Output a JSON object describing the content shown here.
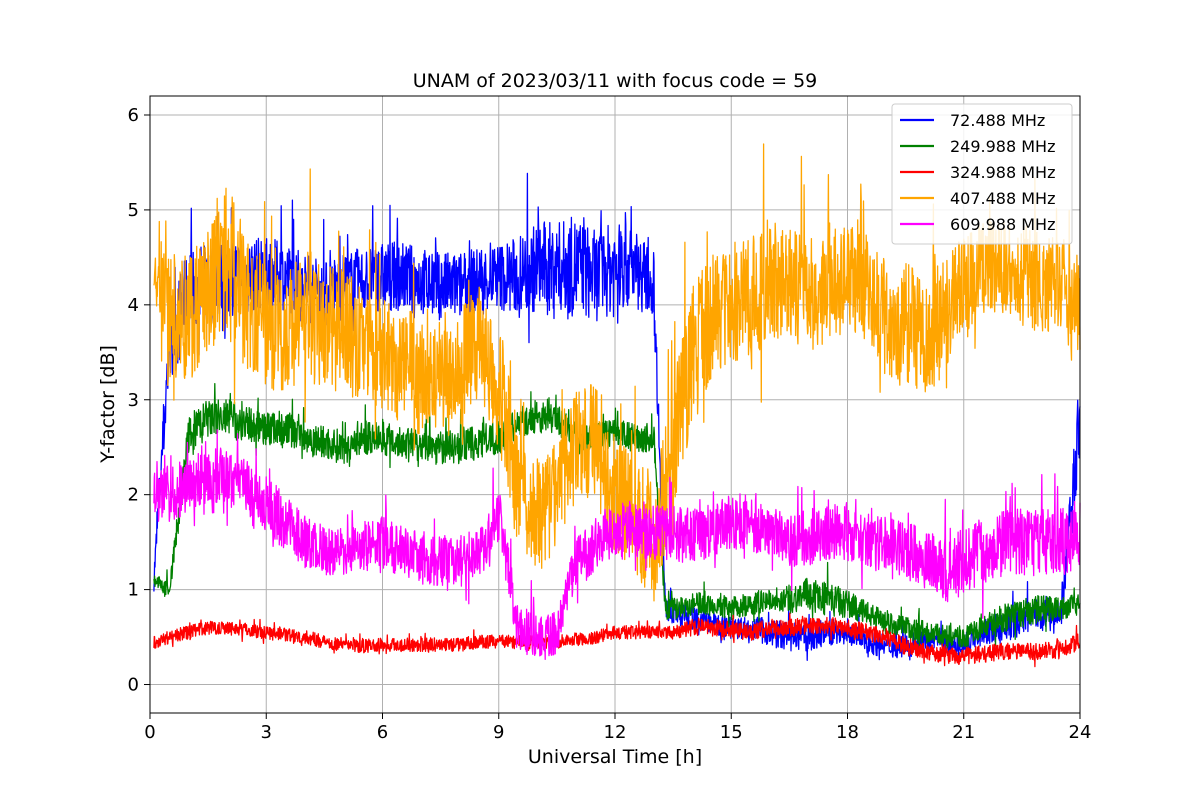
{
  "chart_data": {
    "type": "line",
    "title": "UNAM of 2023/03/11 with focus code = 59",
    "xlabel": "Universal Time [h]",
    "ylabel": "Y-factor [dB]",
    "xlim": [
      0,
      24
    ],
    "ylim": [
      -0.3,
      6.2
    ],
    "xticks": [
      0,
      3,
      6,
      9,
      12,
      15,
      18,
      21,
      24
    ],
    "yticks": [
      0,
      1,
      2,
      3,
      4,
      5,
      6
    ],
    "grid": true,
    "legend_position": "top-right",
    "series": [
      {
        "name": "  72.488 MHz",
        "color": "#0000ff",
        "x": [
          0.1,
          0.5,
          1,
          1.5,
          2,
          2.5,
          3,
          3.5,
          4,
          4.5,
          5,
          5.5,
          6,
          6.5,
          7,
          7.5,
          8,
          8.5,
          9,
          9.5,
          10,
          10.5,
          11,
          11.5,
          12,
          12.5,
          13,
          13.3,
          13.5,
          14,
          14.5,
          15,
          15.5,
          16,
          16.5,
          17,
          17.5,
          18,
          18.5,
          19,
          19.5,
          20,
          20.5,
          21,
          21.5,
          22,
          22.5,
          23,
          23.5,
          24
        ],
        "base": [
          1.1,
          3.6,
          4.1,
          4.2,
          4.3,
          4.3,
          4.35,
          4.3,
          4.2,
          4.1,
          4.2,
          4.25,
          4.3,
          4.3,
          4.25,
          4.2,
          4.2,
          4.25,
          4.3,
          4.3,
          4.4,
          4.4,
          4.4,
          4.3,
          4.4,
          4.4,
          4.2,
          0.8,
          0.75,
          0.7,
          0.65,
          0.6,
          0.6,
          0.55,
          0.5,
          0.5,
          0.55,
          0.55,
          0.45,
          0.4,
          0.4,
          0.45,
          0.45,
          0.4,
          0.55,
          0.6,
          0.7,
          0.75,
          0.7,
          2.8
        ],
        "amp": [
          0.2,
          0.8,
          0.8,
          0.8,
          0.7,
          0.7,
          0.6,
          0.6,
          0.6,
          0.6,
          0.6,
          0.6,
          0.6,
          0.6,
          0.6,
          0.6,
          0.6,
          0.6,
          0.6,
          0.7,
          0.8,
          0.8,
          0.9,
          0.8,
          0.8,
          0.7,
          0.6,
          0.2,
          0.2,
          0.2,
          0.2,
          0.2,
          0.2,
          0.25,
          0.25,
          0.25,
          0.25,
          0.2,
          0.2,
          0.2,
          0.2,
          0.2,
          0.2,
          0.2,
          0.2,
          0.3,
          0.3,
          0.3,
          0.3,
          0.8
        ]
      },
      {
        "name": "249.988 MHz",
        "color": "#008000",
        "x": [
          0.1,
          0.5,
          1,
          1.5,
          2,
          2.5,
          3,
          3.5,
          4,
          4.5,
          5,
          5.5,
          6,
          6.5,
          7,
          7.5,
          8,
          8.5,
          9,
          9.5,
          10,
          10.5,
          11,
          11.5,
          12,
          12.5,
          13,
          13.3,
          13.5,
          14,
          14.5,
          15,
          15.5,
          16,
          16.5,
          17,
          17.5,
          18,
          18.5,
          19,
          19.5,
          20,
          20.5,
          21,
          21.5,
          22,
          22.5,
          23,
          23.5,
          24
        ],
        "base": [
          1.1,
          1.0,
          2.6,
          2.8,
          2.8,
          2.75,
          2.7,
          2.7,
          2.6,
          2.55,
          2.5,
          2.6,
          2.6,
          2.55,
          2.5,
          2.5,
          2.5,
          2.55,
          2.6,
          2.75,
          2.8,
          2.8,
          2.6,
          2.6,
          2.65,
          2.6,
          2.6,
          0.8,
          0.8,
          0.85,
          0.85,
          0.8,
          0.85,
          0.9,
          0.9,
          0.95,
          0.9,
          0.85,
          0.75,
          0.65,
          0.6,
          0.55,
          0.5,
          0.5,
          0.6,
          0.7,
          0.75,
          0.8,
          0.8,
          0.85
        ],
        "amp": [
          0.1,
          0.15,
          0.4,
          0.35,
          0.35,
          0.3,
          0.3,
          0.3,
          0.3,
          0.3,
          0.3,
          0.3,
          0.3,
          0.3,
          0.3,
          0.3,
          0.3,
          0.3,
          0.3,
          0.25,
          0.25,
          0.25,
          0.25,
          0.25,
          0.25,
          0.25,
          0.25,
          0.2,
          0.2,
          0.2,
          0.2,
          0.2,
          0.2,
          0.2,
          0.25,
          0.3,
          0.3,
          0.25,
          0.2,
          0.2,
          0.2,
          0.2,
          0.2,
          0.2,
          0.2,
          0.25,
          0.25,
          0.25,
          0.2,
          0.2
        ]
      },
      {
        "name": "324.988 MHz",
        "color": "#ff0000",
        "x": [
          0.1,
          0.5,
          1,
          1.5,
          2,
          2.5,
          3,
          3.5,
          4,
          4.5,
          5,
          5.5,
          6,
          6.5,
          7,
          7.5,
          8,
          8.5,
          9,
          9.5,
          10,
          10.5,
          11,
          11.5,
          12,
          12.5,
          13,
          13.5,
          14,
          14.5,
          15,
          15.5,
          16,
          16.5,
          17,
          17.5,
          18,
          18.5,
          19,
          19.5,
          20,
          20.5,
          21,
          21.5,
          22,
          22.5,
          23,
          23.5,
          24
        ],
        "base": [
          0.45,
          0.5,
          0.55,
          0.6,
          0.6,
          0.58,
          0.55,
          0.52,
          0.5,
          0.45,
          0.42,
          0.4,
          0.42,
          0.42,
          0.42,
          0.42,
          0.42,
          0.45,
          0.45,
          0.45,
          0.45,
          0.45,
          0.48,
          0.5,
          0.55,
          0.55,
          0.55,
          0.55,
          0.6,
          0.6,
          0.58,
          0.55,
          0.6,
          0.6,
          0.62,
          0.62,
          0.6,
          0.55,
          0.5,
          0.4,
          0.35,
          0.3,
          0.3,
          0.32,
          0.35,
          0.35,
          0.35,
          0.38,
          0.45
        ],
        "amp": [
          0.12,
          0.12,
          0.12,
          0.12,
          0.12,
          0.12,
          0.12,
          0.12,
          0.12,
          0.12,
          0.12,
          0.12,
          0.12,
          0.12,
          0.12,
          0.12,
          0.12,
          0.12,
          0.12,
          0.12,
          0.12,
          0.12,
          0.12,
          0.12,
          0.12,
          0.12,
          0.12,
          0.12,
          0.15,
          0.15,
          0.15,
          0.15,
          0.15,
          0.15,
          0.15,
          0.15,
          0.15,
          0.15,
          0.15,
          0.15,
          0.15,
          0.15,
          0.15,
          0.15,
          0.15,
          0.15,
          0.15,
          0.15,
          0.15
        ]
      },
      {
        "name": "407.488 MHz",
        "color": "#ffa500",
        "x": [
          0.1,
          0.5,
          1,
          1.5,
          2,
          2.5,
          3,
          3.5,
          4,
          4.5,
          5,
          5.5,
          6,
          6.5,
          7,
          7.5,
          8,
          8.5,
          9,
          9.5,
          10,
          10.5,
          11,
          11.5,
          12,
          12.5,
          13,
          13.5,
          14,
          14.5,
          15,
          15.5,
          16,
          16.5,
          17,
          17.5,
          18,
          18.5,
          19,
          19.5,
          20,
          20.5,
          21,
          21.5,
          22,
          22.5,
          23,
          23.5,
          24
        ],
        "base": [
          4.0,
          3.8,
          3.9,
          4.2,
          4.5,
          4.0,
          3.8,
          3.7,
          3.9,
          3.8,
          3.7,
          3.6,
          3.5,
          3.4,
          3.2,
          3.3,
          3.4,
          3.6,
          3.2,
          2.0,
          1.8,
          2.0,
          2.5,
          2.6,
          2.0,
          1.8,
          1.5,
          2.5,
          3.5,
          3.9,
          4.0,
          4.1,
          4.2,
          4.2,
          4.1,
          4.2,
          4.3,
          4.2,
          3.8,
          3.8,
          3.6,
          3.9,
          4.2,
          4.4,
          4.4,
          4.3,
          4.2,
          4.2,
          4.0
        ],
        "amp": [
          1.0,
          1.2,
          1.2,
          1.2,
          1.3,
          1.2,
          1.1,
          1.1,
          1.2,
          1.1,
          1.1,
          1.0,
          1.0,
          1.1,
          1.0,
          1.0,
          1.0,
          1.0,
          1.2,
          1.0,
          1.0,
          1.0,
          1.0,
          1.1,
          1.0,
          1.0,
          1.2,
          1.2,
          1.2,
          1.1,
          1.1,
          1.1,
          1.1,
          1.1,
          1.0,
          1.0,
          1.0,
          1.0,
          1.1,
          1.1,
          1.1,
          1.0,
          0.9,
          0.8,
          0.8,
          0.9,
          0.9,
          0.9,
          1.0
        ]
      },
      {
        "name": "609.988 MHz",
        "color": "#ff00ff",
        "x": [
          0.1,
          0.5,
          1,
          1.5,
          2,
          2.5,
          3,
          3.5,
          4,
          4.5,
          5,
          5.5,
          6,
          6.5,
          7,
          7.5,
          8,
          8.5,
          9,
          9.5,
          10,
          10.5,
          11,
          11.5,
          12,
          12.5,
          13,
          13.5,
          14,
          14.5,
          15,
          15.5,
          16,
          16.5,
          17,
          17.5,
          18,
          18.5,
          19,
          19.5,
          20,
          20.5,
          21,
          21.5,
          22,
          22.5,
          23,
          23.5,
          24
        ],
        "base": [
          2.0,
          2.0,
          2.1,
          2.2,
          2.2,
          2.1,
          1.9,
          1.7,
          1.5,
          1.4,
          1.4,
          1.45,
          1.5,
          1.4,
          1.35,
          1.3,
          1.3,
          1.35,
          1.8,
          0.6,
          0.5,
          0.55,
          1.3,
          1.5,
          1.6,
          1.65,
          1.6,
          1.6,
          1.55,
          1.6,
          1.7,
          1.7,
          1.6,
          1.5,
          1.55,
          1.6,
          1.6,
          1.5,
          1.5,
          1.4,
          1.35,
          1.2,
          1.3,
          1.4,
          1.5,
          1.5,
          1.5,
          1.5,
          1.6
        ],
        "amp": [
          0.5,
          0.5,
          0.5,
          0.5,
          0.5,
          0.5,
          0.5,
          0.5,
          0.45,
          0.45,
          0.45,
          0.45,
          0.45,
          0.45,
          0.45,
          0.45,
          0.45,
          0.45,
          0.5,
          0.4,
          0.4,
          0.4,
          0.45,
          0.5,
          0.5,
          0.5,
          0.5,
          0.5,
          0.5,
          0.5,
          0.5,
          0.5,
          0.5,
          0.5,
          0.5,
          0.5,
          0.5,
          0.5,
          0.5,
          0.5,
          0.5,
          0.6,
          0.6,
          0.6,
          0.6,
          0.6,
          0.6,
          0.6,
          0.6
        ]
      }
    ]
  }
}
